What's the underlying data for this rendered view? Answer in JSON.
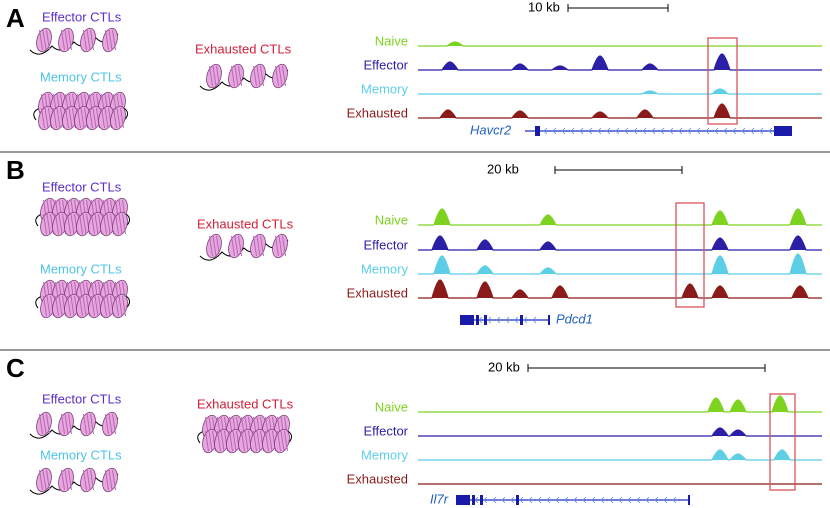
{
  "panels": [
    {
      "letter": "A",
      "effector": "Effector CTLs",
      "memory": "Memory CTLs",
      "exhausted": "Exhausted CTLs",
      "scale": "10 kb",
      "tracks": [
        "Naive",
        "Effector",
        "Memory",
        "Exhausted"
      ],
      "gene": "Havcr2"
    },
    {
      "letter": "B",
      "effector": "Effector CTLs",
      "memory": "Memory CTLs",
      "exhausted": "Exhausted CTLs",
      "scale": "20 kb",
      "tracks": [
        "Naive",
        "Effector",
        "Memory",
        "Exhausted"
      ],
      "gene": "Pdcd1"
    },
    {
      "letter": "C",
      "effector": "Effector CTLs",
      "memory": "Memory CTLs",
      "exhausted": "Exhausted CTLs",
      "scale": "20 kb",
      "tracks": [
        "Naive",
        "Effector",
        "Memory",
        "Exhausted"
      ],
      "gene": "Il7r"
    }
  ]
}
